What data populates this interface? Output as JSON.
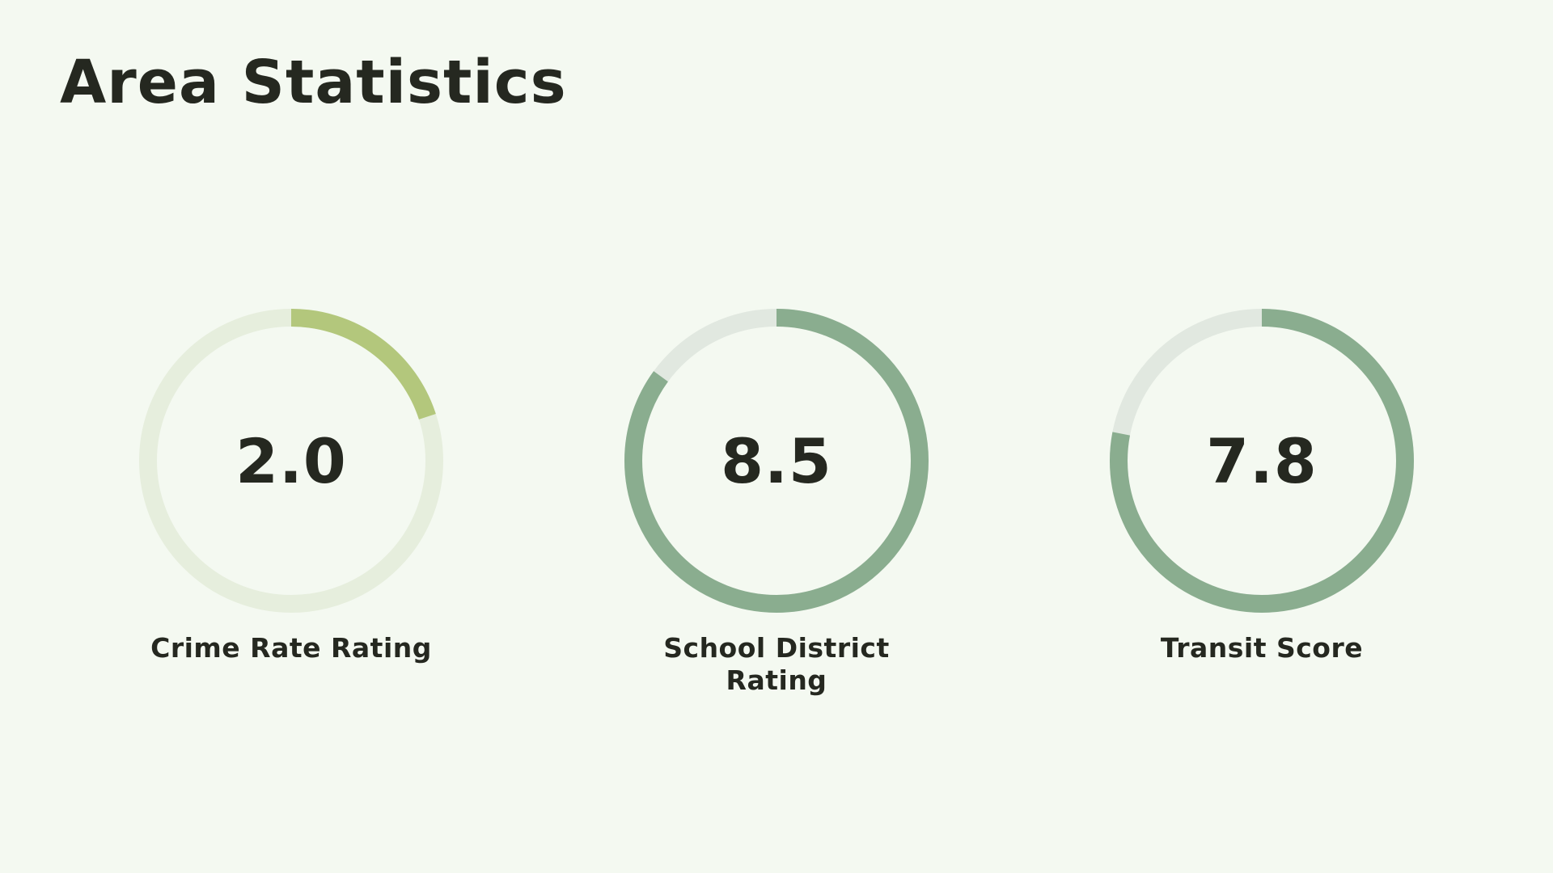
{
  "page": {
    "title": "Area Statistics",
    "background_color": "#f4f9f1"
  },
  "stats": [
    {
      "value": "2.0",
      "score": 2.0,
      "max": 10,
      "label": "Crime Rate Rating",
      "track_color": "#e6eedd",
      "fill_color": "#b3c77c"
    },
    {
      "value": "8.5",
      "score": 8.5,
      "max": 10,
      "label": "School District Rating",
      "track_color": "#e1e8e0",
      "fill_color": "#8aad8f"
    },
    {
      "value": "7.8",
      "score": 7.8,
      "max": 10,
      "label": "Transit Score",
      "track_color": "#e1e8e0",
      "fill_color": "#8aad8f"
    }
  ]
}
